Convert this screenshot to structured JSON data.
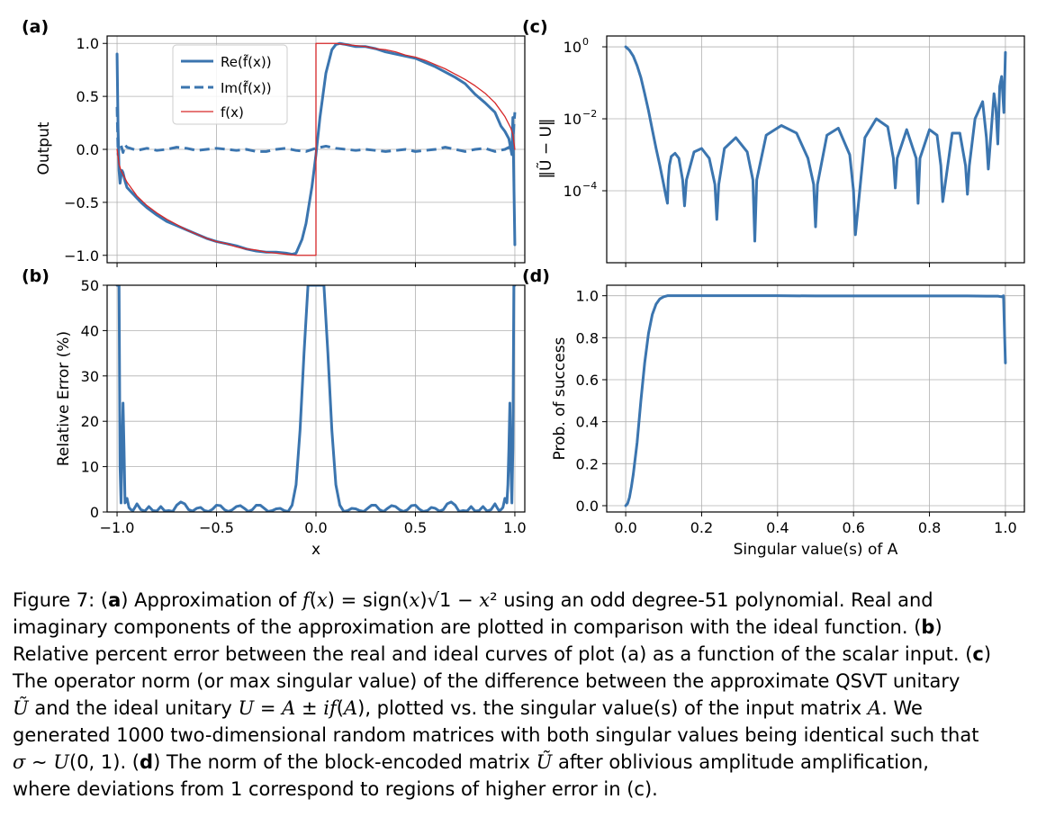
{
  "colors": {
    "line": "#3b75af",
    "ideal": "#d62728",
    "grid": "#b0b0b0",
    "axis": "#000000"
  },
  "panels": {
    "a": {
      "label": "(a)",
      "ylabel": "Output"
    },
    "b": {
      "label": "(b)",
      "ylabel": "Relative Error (%)",
      "xlabel": "x"
    },
    "c": {
      "label": "(c)",
      "ylabel": "‖Ũ − U‖"
    },
    "d": {
      "label": "(d)",
      "ylabel": "Prob. of success",
      "xlabel": "Singular value(s) of A"
    }
  },
  "chart_data": [
    {
      "panel": "a",
      "type": "line",
      "xlim": [
        -1.05,
        1.05
      ],
      "ylim": [
        -1.07,
        1.07
      ],
      "xticks": [
        -1.0,
        -0.5,
        0.0,
        0.5,
        1.0
      ],
      "yticks": [
        -1.0,
        -0.5,
        0.0,
        0.5,
        1.0
      ],
      "ytick_labels": [
        "−1.0",
        "−0.5",
        "0.0",
        "0.5",
        "1.0"
      ],
      "grid": true,
      "legend_position": "upper-center",
      "ylabel": "Output",
      "series": [
        {
          "name": "Re(f̃(x))",
          "style": "solid",
          "x": [
            -1.0,
            -0.995,
            -0.99,
            -0.985,
            -0.98,
            -0.975,
            -0.97,
            -0.96,
            -0.95,
            -0.92,
            -0.88,
            -0.85,
            -0.8,
            -0.75,
            -0.7,
            -0.65,
            -0.6,
            -0.55,
            -0.5,
            -0.45,
            -0.4,
            -0.35,
            -0.3,
            -0.25,
            -0.2,
            -0.15,
            -0.12,
            -0.1,
            -0.07,
            -0.05,
            -0.02,
            0.0,
            0.02,
            0.05,
            0.08,
            0.1,
            0.12,
            0.15,
            0.2,
            0.25,
            0.3,
            0.35,
            0.4,
            0.45,
            0.5,
            0.55,
            0.6,
            0.65,
            0.7,
            0.75,
            0.8,
            0.85,
            0.9,
            0.93,
            0.95,
            0.97,
            0.98,
            0.985,
            0.99,
            0.995,
            1.0
          ],
          "y": [
            0.9,
            0.2,
            -0.2,
            -0.32,
            -0.25,
            -0.2,
            -0.22,
            -0.3,
            -0.36,
            -0.42,
            -0.5,
            -0.55,
            -0.62,
            -0.68,
            -0.72,
            -0.76,
            -0.8,
            -0.84,
            -0.87,
            -0.89,
            -0.91,
            -0.94,
            -0.96,
            -0.97,
            -0.97,
            -0.98,
            -0.99,
            -0.98,
            -0.85,
            -0.7,
            -0.35,
            -0.05,
            0.3,
            0.72,
            0.94,
            0.99,
            1.0,
            0.99,
            0.97,
            0.97,
            0.95,
            0.92,
            0.9,
            0.88,
            0.86,
            0.82,
            0.78,
            0.73,
            0.68,
            0.62,
            0.52,
            0.44,
            0.35,
            0.22,
            0.17,
            0.1,
            0.0,
            -0.05,
            0.3,
            -0.3,
            -0.9
          ]
        },
        {
          "name": "Im(f̃(x))",
          "style": "dashed",
          "x": [
            -1.0,
            -0.995,
            -0.99,
            -0.98,
            -0.97,
            -0.96,
            -0.95,
            -0.9,
            -0.85,
            -0.8,
            -0.75,
            -0.7,
            -0.65,
            -0.6,
            -0.55,
            -0.5,
            -0.45,
            -0.4,
            -0.35,
            -0.3,
            -0.25,
            -0.2,
            -0.15,
            -0.1,
            -0.05,
            0.0,
            0.05,
            0.1,
            0.15,
            0.2,
            0.25,
            0.3,
            0.35,
            0.4,
            0.45,
            0.5,
            0.55,
            0.6,
            0.65,
            0.7,
            0.75,
            0.8,
            0.85,
            0.9,
            0.95,
            0.97,
            0.98,
            0.99,
            1.0
          ],
          "y": [
            0.4,
            -0.05,
            0.05,
            0.04,
            -0.03,
            0.04,
            0.02,
            -0.01,
            0.01,
            -0.01,
            0.0,
            0.02,
            0.01,
            -0.01,
            0.0,
            0.01,
            0.0,
            -0.01,
            0.0,
            -0.02,
            -0.02,
            0.0,
            0.01,
            -0.01,
            -0.02,
            0.01,
            0.03,
            0.01,
            0.0,
            -0.01,
            0.0,
            -0.01,
            -0.02,
            -0.01,
            0.0,
            -0.02,
            -0.01,
            0.0,
            0.02,
            0.0,
            -0.02,
            0.0,
            0.01,
            -0.02,
            0.0,
            0.02,
            -0.02,
            0.08,
            0.35
          ]
        },
        {
          "name": "f(x)",
          "style": "thin",
          "x": [
            -1.0,
            -0.99,
            -0.98,
            -0.95,
            -0.9,
            -0.85,
            -0.8,
            -0.75,
            -0.7,
            -0.65,
            -0.6,
            -0.55,
            -0.5,
            -0.45,
            -0.4,
            -0.35,
            -0.3,
            -0.25,
            -0.2,
            -0.15,
            -0.1,
            -0.05,
            0.0,
            0.0,
            0.0,
            0.05,
            0.1,
            0.15,
            0.2,
            0.25,
            0.3,
            0.35,
            0.4,
            0.45,
            0.5,
            0.55,
            0.6,
            0.65,
            0.7,
            0.75,
            0.8,
            0.85,
            0.9,
            0.95,
            0.98,
            0.99,
            1.0
          ],
          "y": [
            0.0,
            -0.14,
            -0.2,
            -0.31,
            -0.44,
            -0.53,
            -0.6,
            -0.66,
            -0.71,
            -0.76,
            -0.8,
            -0.84,
            -0.87,
            -0.89,
            -0.92,
            -0.94,
            -0.95,
            -0.97,
            -0.98,
            -0.99,
            -1.0,
            -1.0,
            -1.0,
            0.0,
            1.0,
            1.0,
            1.0,
            0.99,
            0.98,
            0.97,
            0.95,
            0.94,
            0.92,
            0.89,
            0.87,
            0.84,
            0.8,
            0.76,
            0.71,
            0.66,
            0.6,
            0.53,
            0.44,
            0.31,
            0.2,
            0.14,
            0.0
          ]
        }
      ]
    },
    {
      "panel": "b",
      "type": "line",
      "xlim": [
        -1.05,
        1.05
      ],
      "ylim": [
        0,
        50
      ],
      "xticks": [
        -1.0,
        -0.5,
        0.0,
        0.5,
        1.0
      ],
      "xtick_labels": [
        "−1.0",
        "−0.5",
        "0.0",
        "0.5",
        "1.0"
      ],
      "yticks": [
        0,
        10,
        20,
        30,
        40,
        50
      ],
      "grid": true,
      "xlabel": "x",
      "ylabel": "Relative Error (%)",
      "series": [
        {
          "x": [
            -1.0,
            -0.995,
            -0.99,
            -0.985,
            -0.98,
            -0.975,
            -0.97,
            -0.965,
            -0.96,
            -0.95,
            -0.94,
            -0.93,
            -0.92,
            -0.91,
            -0.9,
            -0.88,
            -0.86,
            -0.84,
            -0.82,
            -0.8,
            -0.78,
            -0.76,
            -0.74,
            -0.72,
            -0.7,
            -0.68,
            -0.66,
            -0.64,
            -0.62,
            -0.6,
            -0.58,
            -0.56,
            -0.54,
            -0.52,
            -0.5,
            -0.48,
            -0.46,
            -0.44,
            -0.42,
            -0.4,
            -0.38,
            -0.36,
            -0.34,
            -0.32,
            -0.3,
            -0.28,
            -0.26,
            -0.24,
            -0.22,
            -0.2,
            -0.18,
            -0.16,
            -0.14,
            -0.12,
            -0.1,
            -0.08,
            -0.06,
            -0.04,
            -0.03,
            0.03,
            0.04,
            0.06,
            0.08,
            0.1,
            0.12,
            0.14,
            0.16,
            0.18,
            0.2,
            0.22,
            0.24,
            0.26,
            0.28,
            0.3,
            0.32,
            0.34,
            0.36,
            0.38,
            0.4,
            0.42,
            0.44,
            0.46,
            0.48,
            0.5,
            0.52,
            0.54,
            0.56,
            0.58,
            0.6,
            0.62,
            0.64,
            0.66,
            0.68,
            0.7,
            0.72,
            0.74,
            0.76,
            0.78,
            0.8,
            0.82,
            0.84,
            0.86,
            0.88,
            0.9,
            0.91,
            0.92,
            0.93,
            0.94,
            0.95,
            0.96,
            0.965,
            0.97,
            0.975,
            0.98,
            0.985,
            0.99,
            0.995,
            1.0
          ],
          "y": [
            50,
            50,
            50,
            10,
            2,
            14,
            24,
            14,
            2,
            3,
            1,
            0.5,
            0.3,
            1,
            1.8,
            0.5,
            0.2,
            1.2,
            0.3,
            0.2,
            1.2,
            0.2,
            0.3,
            0.1,
            1.5,
            2.2,
            1.8,
            0.5,
            0.2,
            0.8,
            1,
            0.3,
            0.1,
            0.6,
            1.5,
            1.4,
            0.5,
            0.1,
            0.5,
            1.2,
            1.4,
            0.8,
            0.1,
            0.5,
            1.5,
            1.5,
            0.8,
            0.1,
            0.3,
            0.7,
            0.8,
            0.3,
            0.1,
            1.5,
            6,
            18,
            35,
            50,
            50,
            50,
            50,
            35,
            18,
            6,
            1.5,
            0.1,
            0.3,
            0.8,
            0.7,
            0.3,
            0.1,
            0.8,
            1.5,
            1.5,
            0.5,
            0.1,
            0.8,
            1.4,
            1.2,
            0.5,
            0.1,
            0.5,
            1.4,
            1.5,
            0.6,
            0.1,
            0.3,
            1,
            0.8,
            0.2,
            0.5,
            1.8,
            2.2,
            1.5,
            0.1,
            0.3,
            0.2,
            1.2,
            0.2,
            0.3,
            1.2,
            0.2,
            0.5,
            1.8,
            1,
            0.3,
            0.5,
            1,
            3,
            2,
            6,
            14,
            24,
            10,
            2,
            14,
            50,
            50
          ]
        }
      ]
    },
    {
      "panel": "c",
      "type": "line",
      "yscale": "log",
      "xlim": [
        -0.05,
        1.05
      ],
      "ylim": [
        1e-06,
        2
      ],
      "xticks": [
        0.0,
        0.2,
        0.4,
        0.6,
        0.8,
        1.0
      ],
      "yticks": [
        0.0001,
        0.01,
        1
      ],
      "ytick_labels": [
        "10",
        "10",
        "10"
      ],
      "ytick_exponents": [
        "−4",
        "−2",
        "0"
      ],
      "grid": true,
      "ylabel": "‖Ũ − U‖",
      "series": [
        {
          "x": [
            0.0,
            0.01,
            0.02,
            0.03,
            0.04,
            0.05,
            0.06,
            0.07,
            0.08,
            0.09,
            0.1,
            0.105,
            0.11,
            0.112,
            0.115,
            0.12,
            0.13,
            0.14,
            0.15,
            0.155,
            0.16,
            0.18,
            0.2,
            0.22,
            0.235,
            0.24,
            0.245,
            0.26,
            0.29,
            0.32,
            0.335,
            0.34,
            0.345,
            0.37,
            0.41,
            0.45,
            0.48,
            0.495,
            0.5,
            0.505,
            0.53,
            0.56,
            0.59,
            0.6,
            0.605,
            0.63,
            0.66,
            0.69,
            0.705,
            0.71,
            0.715,
            0.74,
            0.765,
            0.77,
            0.775,
            0.8,
            0.82,
            0.83,
            0.835,
            0.86,
            0.88,
            0.895,
            0.9,
            0.905,
            0.92,
            0.94,
            0.95,
            0.955,
            0.96,
            0.97,
            0.975,
            0.98,
            0.985,
            0.99,
            0.993,
            0.996,
            1.0
          ],
          "y": [
            1.0,
            0.8,
            0.55,
            0.3,
            0.14,
            0.05,
            0.017,
            0.005,
            0.0015,
            0.0005,
            0.00015,
            8e-05,
            4.5e-05,
            0.0002,
            0.0005,
            0.0009,
            0.0011,
            0.0008,
            0.0002,
            3.8e-05,
            0.0002,
            0.0012,
            0.0015,
            0.0008,
            0.00015,
            1.6e-05,
            0.00015,
            0.0015,
            0.003,
            0.0012,
            0.0002,
            4e-06,
            0.0002,
            0.0035,
            0.0065,
            0.004,
            0.0008,
            0.00015,
            1e-05,
            0.00015,
            0.0035,
            0.0055,
            0.001,
            0.0001,
            6e-06,
            0.003,
            0.01,
            0.006,
            0.0008,
            0.00012,
            0.0008,
            0.005,
            0.0008,
            4.5e-05,
            0.0008,
            0.005,
            0.0035,
            0.0005,
            5e-05,
            0.004,
            0.004,
            0.0005,
            8e-05,
            0.0005,
            0.01,
            0.03,
            0.003,
            0.0004,
            0.002,
            0.05,
            0.02,
            0.002,
            0.08,
            0.15,
            0.05,
            0.015,
            0.7
          ]
        }
      ]
    },
    {
      "panel": "d",
      "type": "line",
      "xlim": [
        -0.05,
        1.05
      ],
      "ylim": [
        -0.03,
        1.05
      ],
      "xticks": [
        0.0,
        0.2,
        0.4,
        0.6,
        0.8,
        1.0
      ],
      "yticks": [
        0.0,
        0.2,
        0.4,
        0.6,
        0.8,
        1.0
      ],
      "grid": true,
      "xlabel": "Singular value(s) of A",
      "ylabel": "Prob. of success",
      "series": [
        {
          "x": [
            0.0,
            0.005,
            0.01,
            0.015,
            0.02,
            0.03,
            0.04,
            0.05,
            0.06,
            0.07,
            0.08,
            0.09,
            0.1,
            0.11,
            0.12,
            0.15,
            0.2,
            0.3,
            0.4,
            0.5,
            0.6,
            0.7,
            0.8,
            0.9,
            0.95,
            0.98,
            0.99,
            0.995,
            1.0
          ],
          "y": [
            0.0,
            0.01,
            0.04,
            0.09,
            0.15,
            0.3,
            0.5,
            0.68,
            0.82,
            0.91,
            0.96,
            0.985,
            0.995,
            1.0,
            1.0,
            1.0,
            1.0,
            1.0,
            1.0,
            0.999,
            0.999,
            0.999,
            0.999,
            0.999,
            0.998,
            0.998,
            0.995,
            1.0,
            0.68
          ]
        }
      ]
    }
  ],
  "caption": {
    "lines": [
      [
        {
          "t": "Figure 7: ("
        },
        {
          "t": "a",
          "b": true
        },
        {
          "t": ") Approximation of "
        },
        {
          "t": "f",
          "i": true
        },
        {
          "t": "("
        },
        {
          "t": "x",
          "i": true
        },
        {
          "t": ") = sign("
        },
        {
          "t": "x",
          "i": true
        },
        {
          "t": ")√1 − "
        },
        {
          "t": "x",
          "i": true
        },
        {
          "t": "² using an odd degree-51 polynomial. Real and"
        }
      ],
      [
        {
          "t": "imaginary components of the approximation are plotted in comparison with the ideal function. ("
        },
        {
          "t": "b",
          "b": true
        },
        {
          "t": ")"
        }
      ],
      [
        {
          "t": "Relative percent error between the real and ideal curves of plot (a) as a function of the scalar input. ("
        },
        {
          "t": "c",
          "b": true
        },
        {
          "t": ")"
        }
      ],
      [
        {
          "t": "The operator norm (or max singular value) of the difference between the approximate QSVT unitary"
        }
      ],
      [
        {
          "t": "Ũ",
          "i": true
        },
        {
          "t": " and the ideal unitary "
        },
        {
          "t": "U",
          "i": true
        },
        {
          "t": " = "
        },
        {
          "t": "A",
          "i": true
        },
        {
          "t": " ± "
        },
        {
          "t": "if",
          "i": true
        },
        {
          "t": "("
        },
        {
          "t": "A",
          "i": true
        },
        {
          "t": "), plotted vs. the singular value(s) of the input matrix "
        },
        {
          "t": "A",
          "i": true
        },
        {
          "t": ". We"
        }
      ],
      [
        {
          "t": "generated 1000 two-dimensional random matrices with both singular values being identical such that"
        }
      ],
      [
        {
          "t": "σ",
          "i": true
        },
        {
          "t": " ∼ "
        },
        {
          "t": "U",
          "i": true
        },
        {
          "t": "(0, 1). ("
        },
        {
          "t": "d",
          "b": true
        },
        {
          "t": ") The norm of the block-encoded matrix "
        },
        {
          "t": "Ũ",
          "i": true
        },
        {
          "t": " after oblivious amplitude amplification,"
        }
      ],
      [
        {
          "t": "where deviations from 1 correspond to regions of higher error in (c)."
        }
      ]
    ]
  }
}
